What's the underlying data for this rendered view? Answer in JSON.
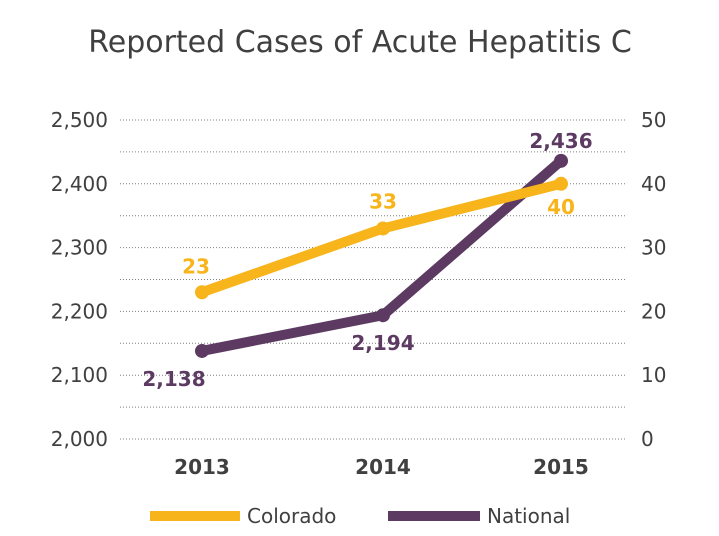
{
  "chart_data": {
    "type": "line",
    "title": "Reported Cases of Acute Hepatitis C",
    "categories": [
      "2013",
      "2014",
      "2015"
    ],
    "left_axis": {
      "ylim": [
        2000,
        2500
      ],
      "ticks": [
        "2,000",
        "2,100",
        "2,200",
        "2,300",
        "2,400",
        "2,500"
      ],
      "tick_values": [
        2000,
        2100,
        2200,
        2300,
        2400,
        2500
      ]
    },
    "right_axis": {
      "ylim": [
        0,
        50
      ],
      "ticks": [
        "0",
        "10",
        "20",
        "30",
        "40",
        "50"
      ],
      "tick_values": [
        0,
        10,
        20,
        30,
        40,
        50
      ]
    },
    "grid": true,
    "legend_position": "bottom",
    "series": [
      {
        "name": "Colorado",
        "axis": "right",
        "values": [
          23,
          33,
          40
        ],
        "labels": [
          "23",
          "33",
          "40"
        ],
        "color": "#f8b41b"
      },
      {
        "name": "National",
        "axis": "left",
        "values": [
          2138,
          2194,
          2436
        ],
        "labels": [
          "2,138",
          "2,194",
          "2,436"
        ],
        "color": "#5c3a62"
      }
    ]
  }
}
